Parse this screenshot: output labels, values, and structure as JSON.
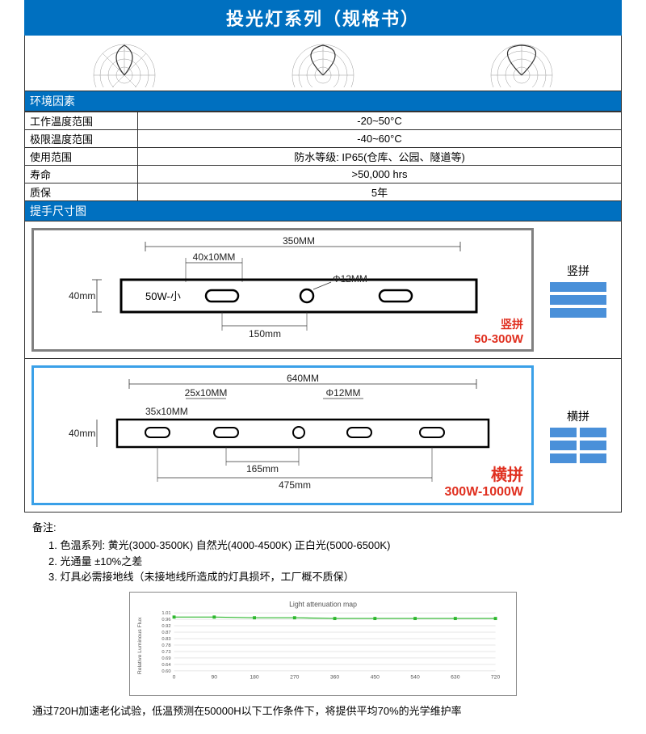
{
  "title": "投光灯系列（规格书）",
  "env_section": "环境因素",
  "spec_rows": [
    {
      "label": "工作温度范围",
      "value": "-20~50°C"
    },
    {
      "label": "极限温度范围",
      "value": "-40~60°C"
    },
    {
      "label": "使用范围",
      "value": "防水等级: IP65(仓库、公园、隧道等)"
    },
    {
      "label": "寿命",
      "value": ">50,000 hrs"
    },
    {
      "label": "质保",
      "value": "5年"
    }
  ],
  "dim_section": "提手尺寸图",
  "bracket1": {
    "border_color": "#808080",
    "width_top": "350MM",
    "slot1": "40x10MM",
    "hole": "Φ12MM",
    "height": "40mm",
    "label_left": "50W-小",
    "dim_bottom": "150mm",
    "tag": "竖拼",
    "range": "50-300W"
  },
  "side1": {
    "label": "竖拼"
  },
  "bracket2": {
    "border_color": "#3aa0e8",
    "width_top": "640MM",
    "slot1": "25x10MM",
    "slot2": "35x10MM",
    "hole": "Φ12MM",
    "height": "40mm",
    "dim_mid": "165mm",
    "dim_bottom": "475mm",
    "tag": "横拼",
    "range": "300W-1000W"
  },
  "side2": {
    "label": "横拼"
  },
  "notes_label": "备注:",
  "notes": [
    "1. 色温系列: 黄光(3000-3500K) 自然光(4000-4500K) 正白光(5000-6500K)",
    "2. 光通量 ±10%之差",
    "3. 灯具必需接地线（未接地线所造成的灯具损坏，工厂概不质保）"
  ],
  "chart": {
    "title": "Light attenuation map",
    "ylabel": "Relative Luminous Flux",
    "yticks": [
      "1.01",
      "0.96",
      "0.92",
      "0.87",
      "0.83",
      "0.78",
      "0.73",
      "0.69",
      "0.64",
      "0.60"
    ],
    "xticks": [
      "0",
      "90",
      "180",
      "270",
      "360",
      "450",
      "540",
      "630",
      "720"
    ],
    "series_color": "#2eb82e",
    "points_y": [
      0.98,
      0.98,
      0.975,
      0.975,
      0.97,
      0.97,
      0.97,
      0.97,
      0.97
    ]
  },
  "footer": "通过720H加速老化试验，低温预测在50000H以下工作条件下，将提供平均70%的光学维护率"
}
